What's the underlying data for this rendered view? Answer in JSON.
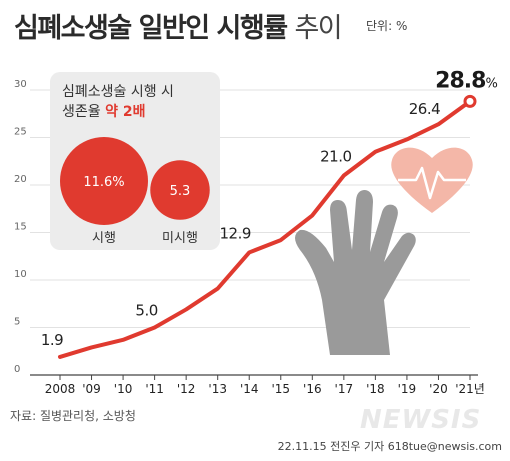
{
  "title": {
    "bold": "심폐소생술 일반인 시행률",
    "light": "추이",
    "unit": "단위: %"
  },
  "inset": {
    "text_line1": "심폐소생술 시행 시",
    "text_line2_prefix": "생존율",
    "text_line2_highlight": "약 2배",
    "bubbles": [
      {
        "label": "시행",
        "value": "11.6%",
        "amount": 11.6
      },
      {
        "label": "미시행",
        "value": "5.3",
        "amount": 5.3
      }
    ]
  },
  "chart_data": {
    "type": "line",
    "title": "심폐소생술 일반인 시행률 추이",
    "ylabel": "단위: %",
    "categories": [
      "2008",
      "'09",
      "'10",
      "'11",
      "'12",
      "'13",
      "'14",
      "'15",
      "'16",
      "'17",
      "'18",
      "'19",
      "'20",
      "'21년"
    ],
    "values": [
      1.9,
      2.9,
      3.7,
      5.0,
      6.9,
      9.1,
      12.9,
      14.2,
      16.8,
      21.0,
      23.5,
      24.8,
      26.4,
      28.8
    ],
    "labeled_points": [
      {
        "index": 0,
        "text": "1.9"
      },
      {
        "index": 3,
        "text": "5.0"
      },
      {
        "index": 6,
        "text": "12.9"
      },
      {
        "index": 9,
        "text": "21.0"
      },
      {
        "index": 12,
        "text": "26.4"
      },
      {
        "index": 13,
        "text": "28.8",
        "suffix": "%"
      }
    ],
    "yticks": [
      0,
      5,
      10,
      15,
      20,
      25,
      30
    ],
    "ylim": [
      0,
      30
    ],
    "grid": true,
    "line_color": "#e03a2f"
  },
  "source": "자료: 질병관리청, 소방청",
  "credit": "22.11.15 전진우 기자 618tue@newsis.com",
  "watermark": "NEWSIS"
}
